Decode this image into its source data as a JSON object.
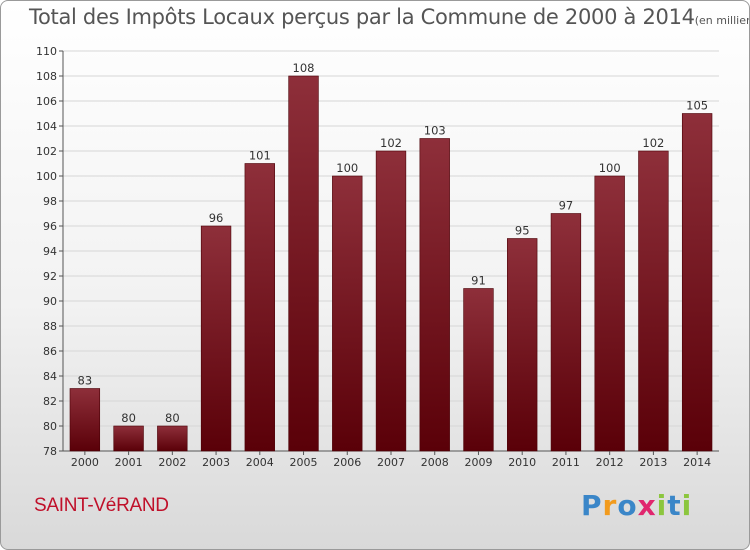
{
  "header": {
    "title": "Total des Impôts Locaux perçus par la Commune de 2000 à 2014",
    "unit": "(en milliers d'€)"
  },
  "footer": {
    "commune": "SAINT-VéRAND",
    "brand": "Proxiti"
  },
  "colors": {
    "bar_top": "#8e2f3a",
    "bar_bottom": "#5a0008",
    "brand_letters": [
      "#3a86c8",
      "#f29b1d",
      "#3a86c8",
      "#e0266e",
      "#8cc63e",
      "#3a86c8",
      "#8cc63e"
    ]
  },
  "chart_data": {
    "type": "bar",
    "title": "Total des Impôts Locaux perçus par la Commune de 2000 à 2014",
    "unit_label": "(en milliers d'€)",
    "categories": [
      "2000",
      "2001",
      "2002",
      "2003",
      "2004",
      "2005",
      "2006",
      "2007",
      "2008",
      "2009",
      "2010",
      "2011",
      "2012",
      "2013",
      "2014"
    ],
    "values": [
      83,
      80,
      80,
      96,
      101,
      108,
      100,
      102,
      103,
      91,
      95,
      97,
      100,
      102,
      105
    ],
    "ylim": [
      78,
      110
    ],
    "yticks": [
      78,
      80,
      82,
      84,
      86,
      88,
      90,
      92,
      94,
      96,
      98,
      100,
      102,
      104,
      106,
      108,
      110
    ],
    "grid": true,
    "legend": "none"
  }
}
